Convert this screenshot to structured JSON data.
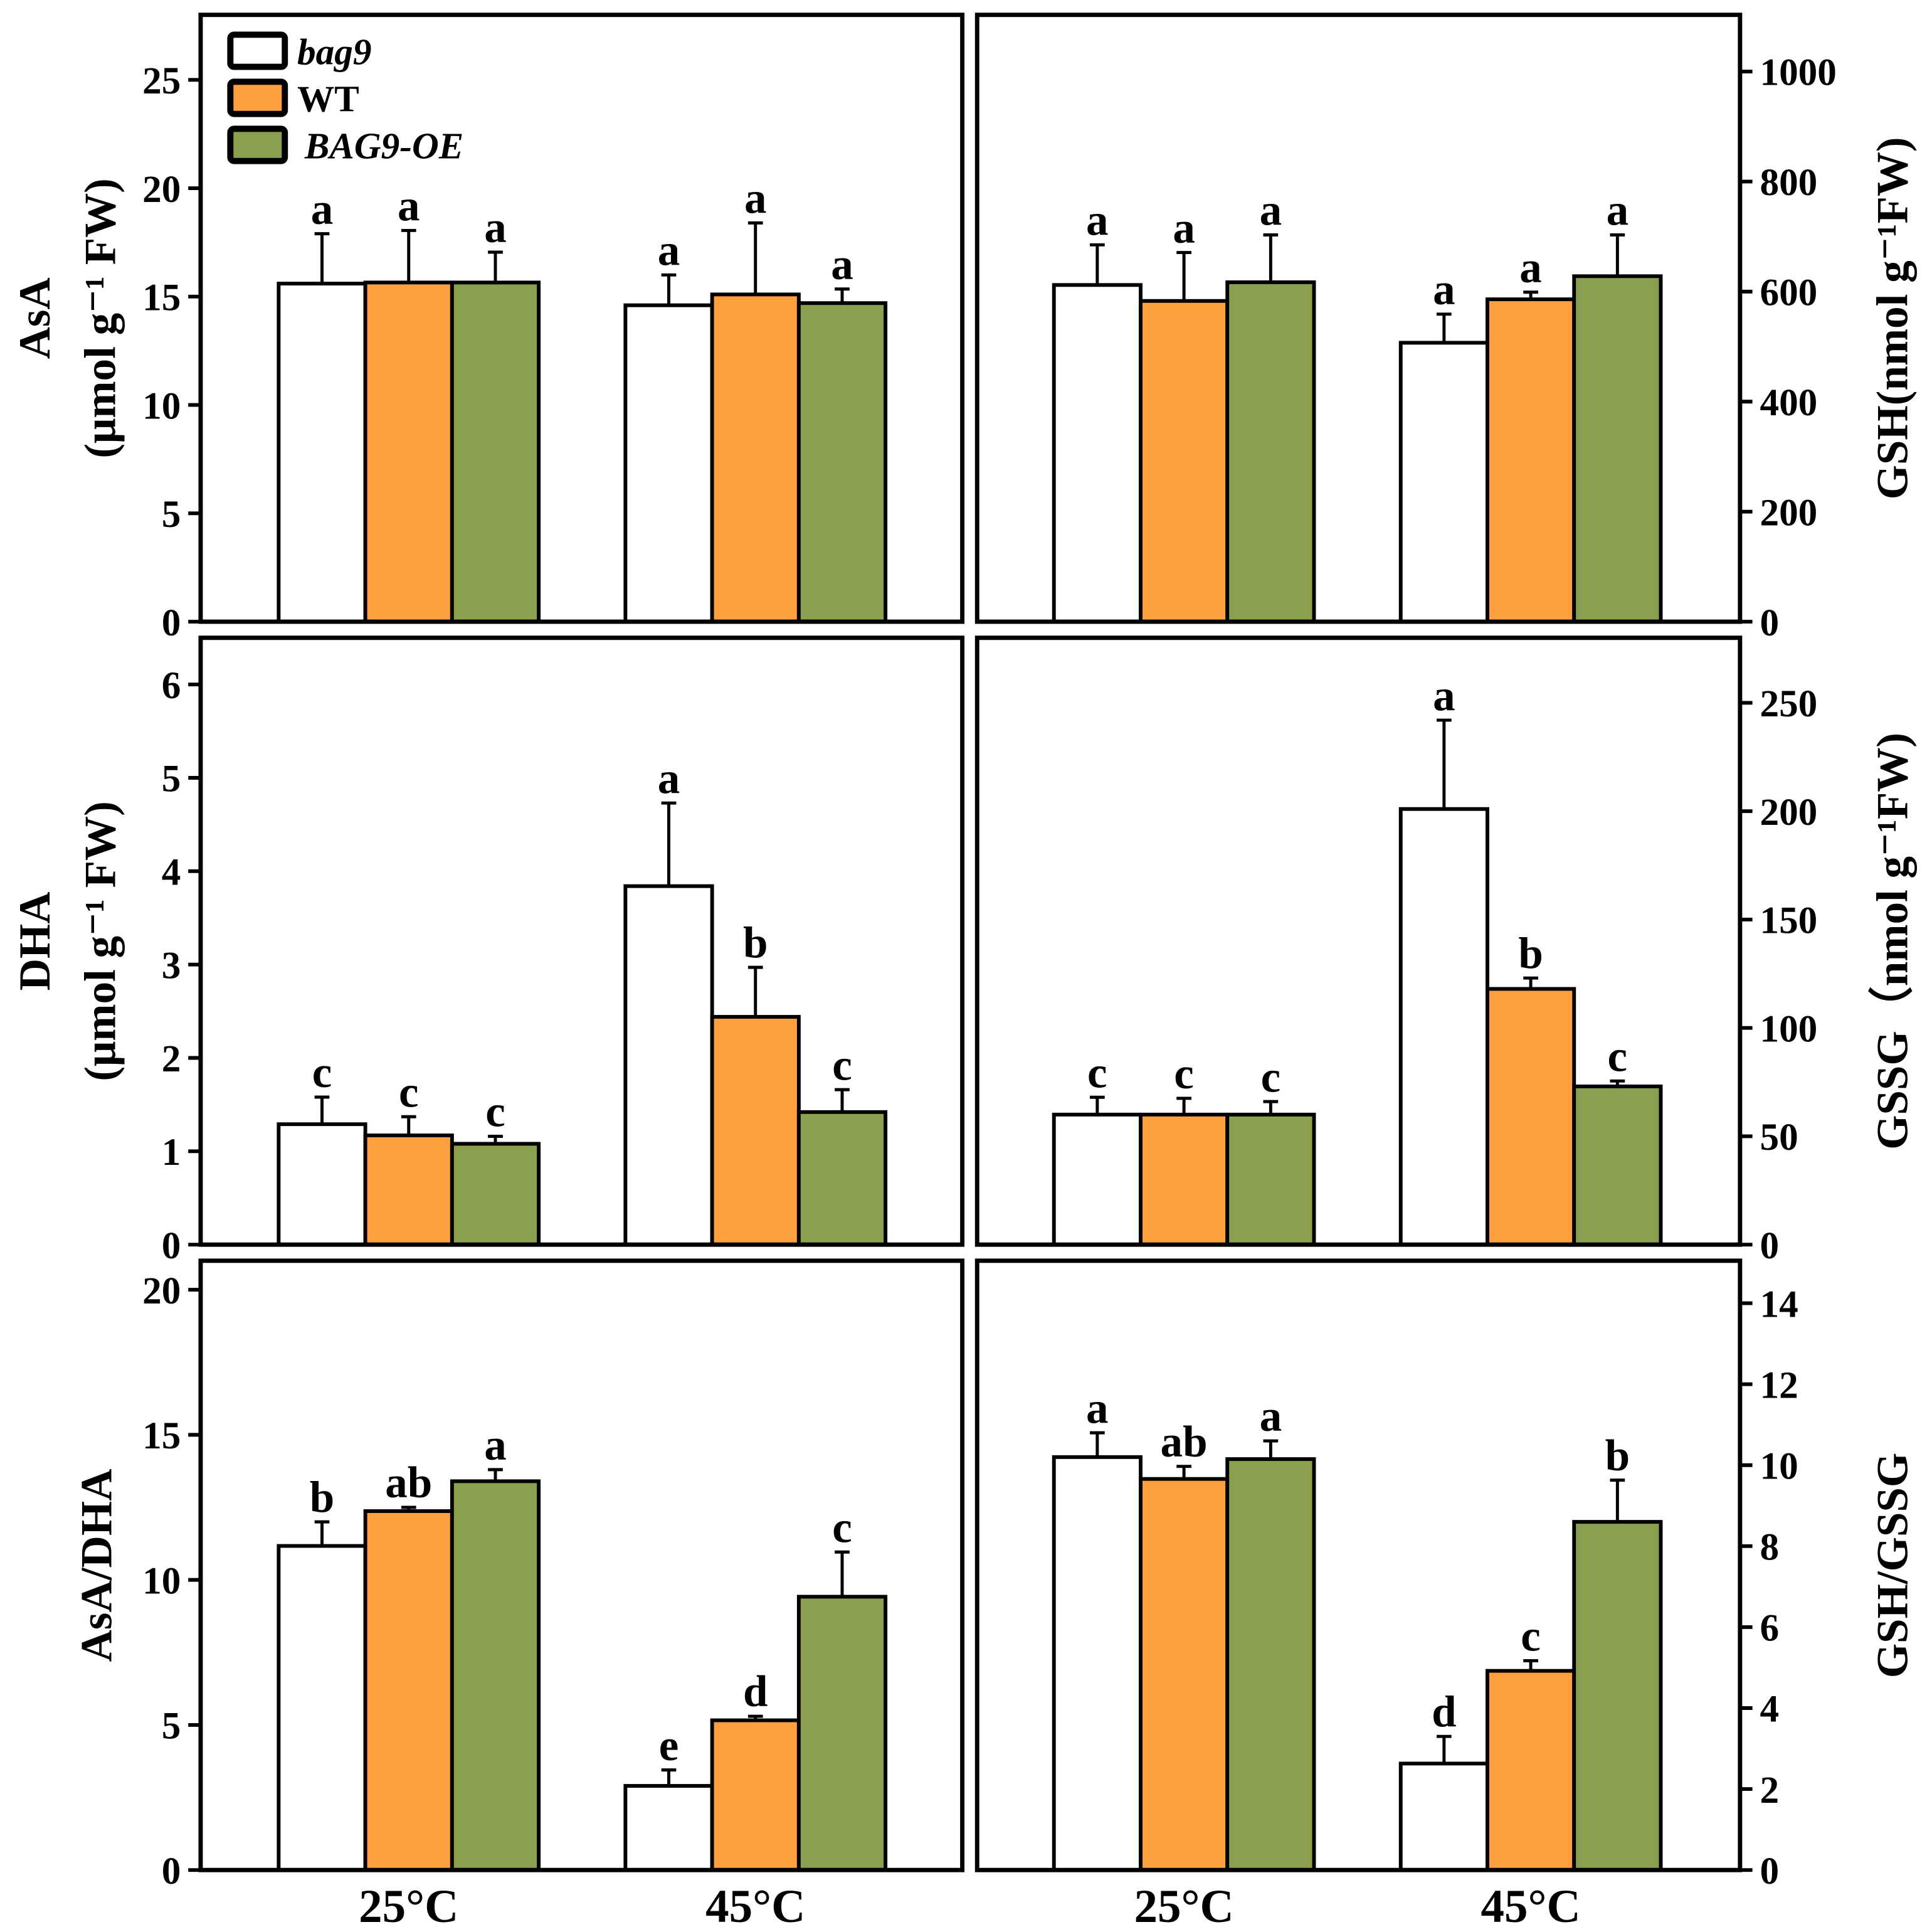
{
  "colors": {
    "bag9": "#ffffff",
    "WT": "#ffa040",
    "BAG9-OE": "#8aa04e",
    "stroke": "#000000"
  },
  "legend": {
    "items": [
      {
        "label": "bag9",
        "italic": true,
        "series": "bag9"
      },
      {
        "label": "WT",
        "italic": false,
        "series": "WT"
      },
      {
        "label": "BAG9-OE",
        "italic_part": "BAG9",
        "rest": "-OE",
        "series": "BAG9-OE"
      }
    ],
    "placement": "top-left"
  },
  "chart_data": [
    {
      "id": "asa",
      "type": "bar",
      "ylabel": [
        "AsA",
        "(μmol g⁻¹ FW)"
      ],
      "axis_side": "left",
      "ylim": [
        0,
        28
      ],
      "yticks": [
        0,
        5,
        10,
        15,
        20,
        25
      ],
      "categories": [
        "25°C",
        "45°C"
      ],
      "series": [
        {
          "name": "bag9",
          "values": [
            15.6,
            14.6
          ],
          "errors": [
            2.3,
            1.4
          ],
          "letters": [
            "a",
            "a"
          ]
        },
        {
          "name": "WT",
          "values": [
            15.65,
            15.1
          ],
          "errors": [
            2.4,
            3.3
          ],
          "letters": [
            "a",
            "a"
          ]
        },
        {
          "name": "BAG9-OE",
          "values": [
            15.65,
            14.7
          ],
          "errors": [
            1.4,
            0.65
          ],
          "letters": [
            "a",
            "a"
          ]
        }
      ]
    },
    {
      "id": "gsh",
      "type": "bar",
      "ylabel": [
        "GSH(nmol g⁻¹FW)"
      ],
      "axis_side": "right",
      "ylim": [
        0,
        1103
      ],
      "yticks": [
        0,
        200,
        400,
        600,
        800,
        1000
      ],
      "categories": [
        "25°C",
        "45°C"
      ],
      "series": [
        {
          "name": "bag9",
          "values": [
            612,
            507
          ],
          "errors": [
            73,
            52
          ],
          "letters": [
            "a",
            "a"
          ]
        },
        {
          "name": "WT",
          "values": [
            583,
            586
          ],
          "errors": [
            88,
            13
          ],
          "letters": [
            "a",
            "a"
          ]
        },
        {
          "name": "BAG9-OE",
          "values": [
            617,
            628
          ],
          "errors": [
            86,
            75
          ],
          "letters": [
            "a",
            "a"
          ]
        }
      ]
    },
    {
      "id": "dha",
      "type": "bar",
      "ylabel": [
        "DHA",
        "(μmol g⁻¹ FW)"
      ],
      "axis_side": "left",
      "ylim": [
        0,
        6.5
      ],
      "yticks": [
        0,
        1,
        2,
        3,
        4,
        5,
        6
      ],
      "categories": [
        "25°C",
        "45°C"
      ],
      "series": [
        {
          "name": "bag9",
          "values": [
            1.29,
            3.84
          ],
          "errors": [
            0.29,
            0.89
          ],
          "letters": [
            "c",
            "a"
          ]
        },
        {
          "name": "WT",
          "values": [
            1.17,
            2.44
          ],
          "errors": [
            0.2,
            0.53
          ],
          "letters": [
            "c",
            "b"
          ]
        },
        {
          "name": "BAG9-OE",
          "values": [
            1.08,
            1.42
          ],
          "errors": [
            0.08,
            0.24
          ],
          "letters": [
            "c",
            "c"
          ]
        }
      ]
    },
    {
      "id": "gssg",
      "type": "bar",
      "ylabel": [
        "GSSG（nmol g⁻¹FW)"
      ],
      "axis_side": "right",
      "ylim": [
        0,
        280
      ],
      "yticks": [
        0,
        50,
        100,
        150,
        200,
        250
      ],
      "categories": [
        "25°C",
        "45°C"
      ],
      "series": [
        {
          "name": "bag9",
          "values": [
            60,
            201
          ],
          "errors": [
            8,
            41
          ],
          "letters": [
            "c",
            "a"
          ]
        },
        {
          "name": "WT",
          "values": [
            60,
            118
          ],
          "errors": [
            7.5,
            5
          ],
          "letters": [
            "c",
            "b"
          ]
        },
        {
          "name": "BAG9-OE",
          "values": [
            60,
            73
          ],
          "errors": [
            6,
            2.5
          ],
          "letters": [
            "c",
            "c"
          ]
        }
      ]
    },
    {
      "id": "asa-dha",
      "type": "bar",
      "ylabel": [
        "AsA/DHA"
      ],
      "axis_side": "left",
      "ylim": [
        0,
        21
      ],
      "yticks": [
        0,
        5,
        10,
        15,
        20
      ],
      "categories": [
        "25°C",
        "45°C"
      ],
      "series": [
        {
          "name": "bag9",
          "values": [
            11.17,
            2.9
          ],
          "errors": [
            0.83,
            0.55
          ],
          "letters": [
            "b",
            "e"
          ]
        },
        {
          "name": "WT",
          "values": [
            12.37,
            5.16
          ],
          "errors": [
            0.13,
            0.14
          ],
          "letters": [
            "ab",
            "d"
          ]
        },
        {
          "name": "BAG9-OE",
          "values": [
            13.4,
            9.42
          ],
          "errors": [
            0.4,
            1.54
          ],
          "letters": [
            "a",
            "c"
          ]
        }
      ]
    },
    {
      "id": "gsh-gssg",
      "type": "bar",
      "ylabel": [
        "GSH/GSSG"
      ],
      "axis_side": "right",
      "ylim": [
        0,
        15.05
      ],
      "yticks": [
        0,
        2,
        4,
        6,
        8,
        10,
        12,
        14
      ],
      "categories": [
        "25°C",
        "45°C"
      ],
      "series": [
        {
          "name": "bag9",
          "values": [
            10.2,
            2.63
          ],
          "errors": [
            0.6,
            0.67
          ],
          "letters": [
            "a",
            "d"
          ]
        },
        {
          "name": "WT",
          "values": [
            9.66,
            4.92
          ],
          "errors": [
            0.31,
            0.25
          ],
          "letters": [
            "ab",
            "c"
          ]
        },
        {
          "name": "BAG9-OE",
          "values": [
            10.15,
            8.6
          ],
          "errors": [
            0.45,
            1.03
          ],
          "letters": [
            "a",
            "b"
          ]
        }
      ]
    }
  ]
}
